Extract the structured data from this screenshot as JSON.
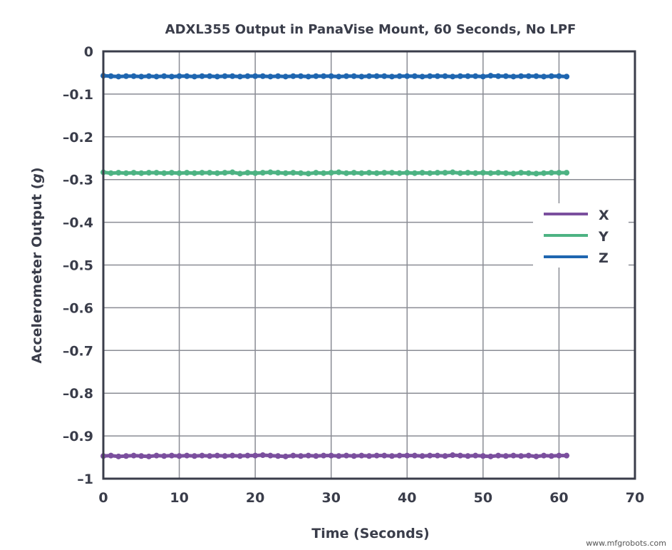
{
  "chart_data": {
    "type": "line",
    "title": "ADXL355 Output in PanaVise Mount, 60 Seconds, No LPF",
    "xlabel": "Time (Seconds)",
    "ylabel_prefix": "Accelerometer Output (",
    "ylabel_unit": "g",
    "ylabel_suffix": ")",
    "xlim": [
      0,
      70
    ],
    "ylim": [
      -1,
      0
    ],
    "xticks": [
      0,
      10,
      20,
      30,
      40,
      50,
      60,
      70
    ],
    "xtick_labels": [
      "0",
      "10",
      "20",
      "30",
      "40",
      "50",
      "60",
      "70"
    ],
    "yticks": [
      0,
      -0.1,
      -0.2,
      -0.3,
      -0.4,
      -0.5,
      -0.6,
      -0.7,
      -0.8,
      -0.9,
      -1
    ],
    "ytick_labels": [
      "0",
      "–0.1",
      "–0.2",
      "–0.3",
      "–0.4",
      "–0.5",
      "–0.6",
      "–0.7",
      "–0.8",
      "–0.9",
      "–1"
    ],
    "grid": true,
    "legend_position": "right",
    "x_start": 0,
    "x_step": 1,
    "series": [
      {
        "name": "X",
        "color": "#7b4f9e",
        "values": [
          -0.947,
          -0.946,
          -0.948,
          -0.947,
          -0.946,
          -0.947,
          -0.948,
          -0.946,
          -0.947,
          -0.946,
          -0.947,
          -0.946,
          -0.947,
          -0.946,
          -0.947,
          -0.946,
          -0.947,
          -0.946,
          -0.947,
          -0.946,
          -0.946,
          -0.945,
          -0.946,
          -0.947,
          -0.948,
          -0.946,
          -0.947,
          -0.946,
          -0.947,
          -0.946,
          -0.946,
          -0.947,
          -0.946,
          -0.947,
          -0.946,
          -0.947,
          -0.946,
          -0.946,
          -0.947,
          -0.946,
          -0.946,
          -0.946,
          -0.947,
          -0.946,
          -0.946,
          -0.947,
          -0.945,
          -0.946,
          -0.947,
          -0.946,
          -0.947,
          -0.948,
          -0.946,
          -0.947,
          -0.946,
          -0.947,
          -0.946,
          -0.948,
          -0.946,
          -0.947,
          -0.946,
          -0.946
        ]
      },
      {
        "name": "Y",
        "color": "#4db383",
        "values": [
          -0.283,
          -0.285,
          -0.284,
          -0.285,
          -0.284,
          -0.285,
          -0.284,
          -0.284,
          -0.285,
          -0.284,
          -0.285,
          -0.284,
          -0.285,
          -0.284,
          -0.284,
          -0.285,
          -0.284,
          -0.283,
          -0.286,
          -0.284,
          -0.285,
          -0.284,
          -0.283,
          -0.284,
          -0.285,
          -0.284,
          -0.285,
          -0.286,
          -0.284,
          -0.285,
          -0.284,
          -0.283,
          -0.285,
          -0.284,
          -0.285,
          -0.284,
          -0.285,
          -0.284,
          -0.284,
          -0.285,
          -0.284,
          -0.285,
          -0.284,
          -0.285,
          -0.284,
          -0.284,
          -0.283,
          -0.285,
          -0.284,
          -0.285,
          -0.284,
          -0.285,
          -0.284,
          -0.285,
          -0.286,
          -0.284,
          -0.285,
          -0.286,
          -0.285,
          -0.284,
          -0.284,
          -0.284
        ]
      },
      {
        "name": "Z",
        "color": "#1f66b0",
        "values": [
          -0.057,
          -0.058,
          -0.059,
          -0.058,
          -0.058,
          -0.059,
          -0.058,
          -0.059,
          -0.058,
          -0.059,
          -0.058,
          -0.058,
          -0.059,
          -0.058,
          -0.058,
          -0.059,
          -0.058,
          -0.058,
          -0.059,
          -0.058,
          -0.058,
          -0.058,
          -0.059,
          -0.058,
          -0.059,
          -0.058,
          -0.058,
          -0.059,
          -0.058,
          -0.058,
          -0.058,
          -0.059,
          -0.058,
          -0.058,
          -0.059,
          -0.058,
          -0.058,
          -0.058,
          -0.059,
          -0.058,
          -0.058,
          -0.058,
          -0.059,
          -0.058,
          -0.058,
          -0.058,
          -0.059,
          -0.058,
          -0.058,
          -0.058,
          -0.059,
          -0.057,
          -0.058,
          -0.058,
          -0.059,
          -0.058,
          -0.058,
          -0.058,
          -0.059,
          -0.058,
          -0.058,
          -0.059
        ]
      }
    ]
  },
  "watermark": "www.mfgrobots.com"
}
